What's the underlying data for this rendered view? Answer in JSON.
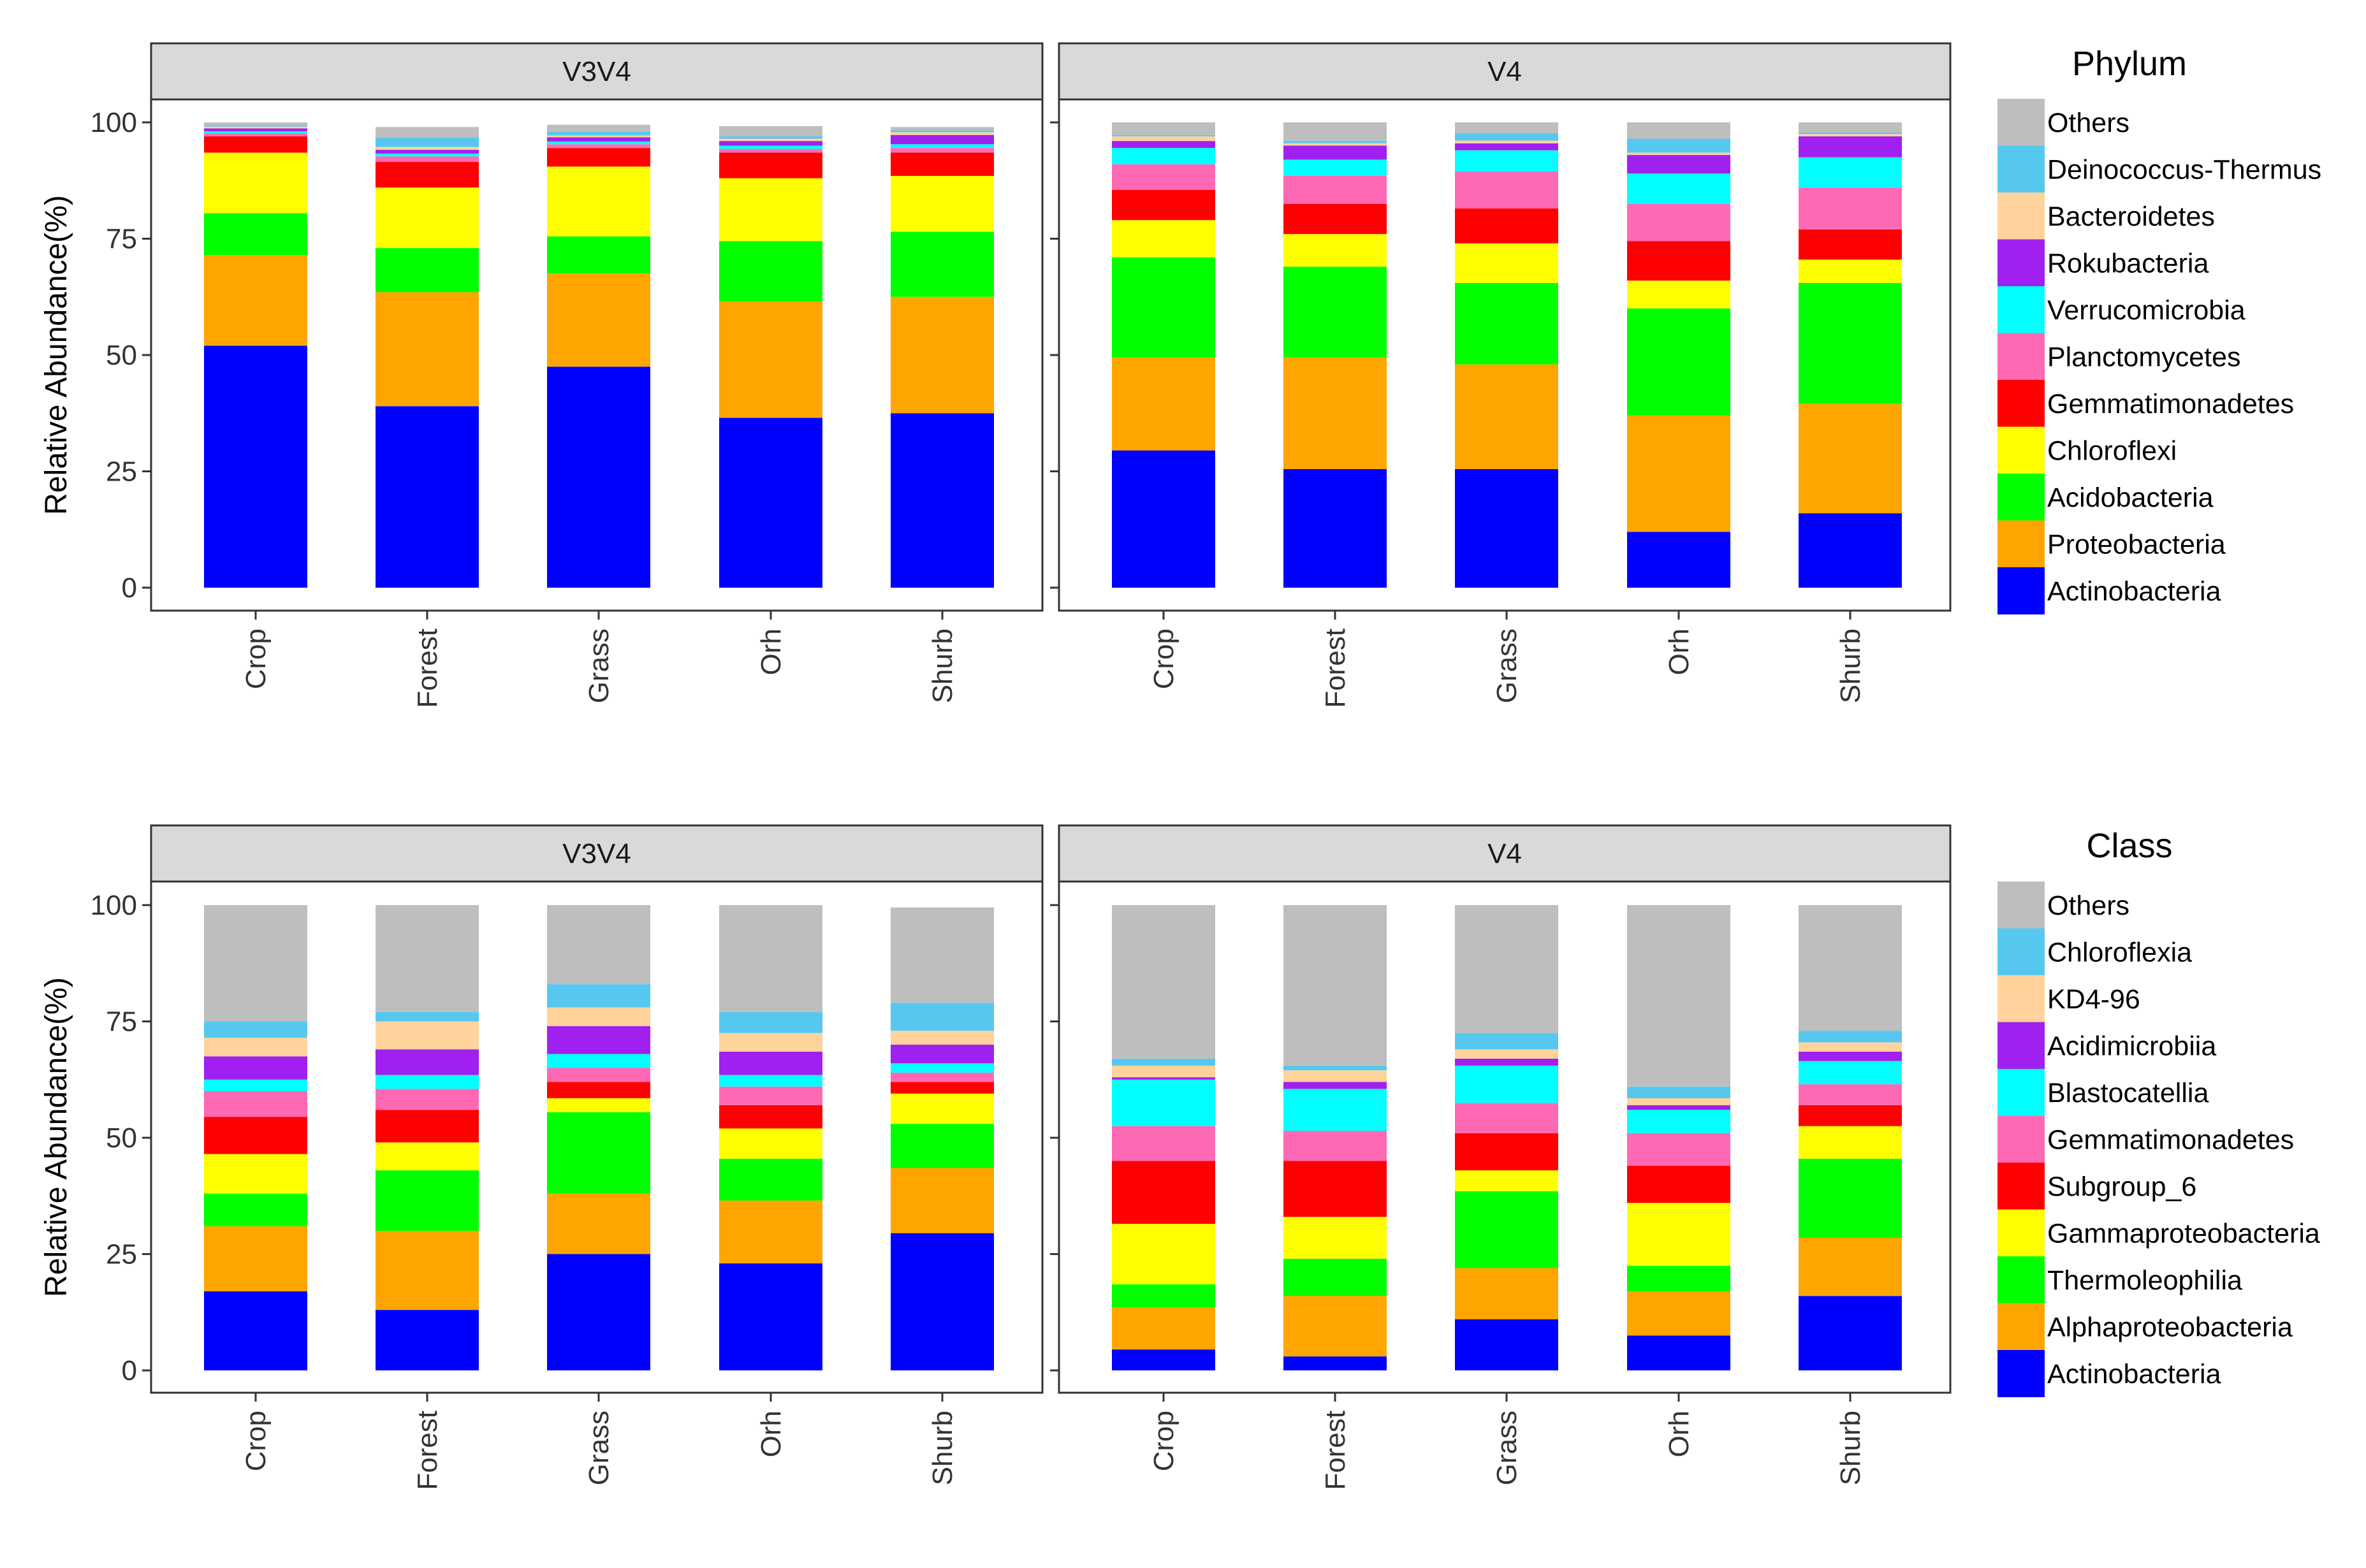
{
  "chart_data": [
    {
      "type": "bar",
      "stacked": true,
      "title": "Phylum",
      "ylabel": "Relative Abundance(%)",
      "ylim": [
        0,
        100
      ],
      "yticks": [
        0,
        25,
        50,
        75,
        100
      ],
      "categories": [
        "Crop",
        "Forest",
        "Grass",
        "Orh",
        "Shurb"
      ],
      "legend": {
        "title": "Phylum",
        "entries": [
          "Others",
          "Deinococcus-Thermus",
          "Bacteroidetes",
          "Rokubacteria",
          "Verrucomicrobia",
          "Planctomycetes",
          "Gemmatimonadetes",
          "Chloroflexi",
          "Acidobacteria",
          "Proteobacteria",
          "Actinobacteria"
        ]
      },
      "series_order": [
        "Actinobacteria",
        "Proteobacteria",
        "Acidobacteria",
        "Chloroflexi",
        "Gemmatimonadetes",
        "Planctomycetes",
        "Verrucomicrobia",
        "Rokubacteria",
        "Bacteroidetes",
        "Deinococcus-Thermus",
        "Others"
      ],
      "colors": {
        "Actinobacteria": "#0000ff",
        "Proteobacteria": "#ffa500",
        "Acidobacteria": "#00ff00",
        "Chloroflexi": "#ffff00",
        "Gemmatimonadetes": "#ff0000",
        "Planctomycetes": "#ff69b4",
        "Verrucomicrobia": "#00ffff",
        "Rokubacteria": "#a020f0",
        "Bacteroidetes": "#ffd39b",
        "Deinococcus-Thermus": "#56c8f0",
        "Others": "#bebebe"
      },
      "panels": [
        {
          "strip": "V3V4",
          "series": [
            {
              "name": "Actinobacteria",
              "values": [
                52,
                39,
                47.5,
                36.5,
                37.5
              ]
            },
            {
              "name": "Proteobacteria",
              "values": [
                19.5,
                24.5,
                20,
                25,
                25
              ]
            },
            {
              "name": "Acidobacteria",
              "values": [
                9,
                9.5,
                8,
                13,
                14
              ]
            },
            {
              "name": "Chloroflexi",
              "values": [
                13,
                13,
                15,
                13.5,
                12
              ]
            },
            {
              "name": "Gemmatimonadetes",
              "values": [
                3.5,
                5.5,
                4,
                5.5,
                5
              ]
            },
            {
              "name": "Planctomycetes",
              "values": [
                0.6,
                1.2,
                0.8,
                0.8,
                1
              ]
            },
            {
              "name": "Verrucomicrobia",
              "values": [
                0.5,
                0.6,
                0.6,
                0.7,
                0.8
              ]
            },
            {
              "name": "Rokubacteria",
              "values": [
                0.6,
                0.8,
                0.9,
                1,
                2
              ]
            },
            {
              "name": "Bacteroidetes",
              "values": [
                0.4,
                0.6,
                0.4,
                0.5,
                0.6
              ]
            },
            {
              "name": "Deinococcus-Thermus",
              "values": [
                0.3,
                2,
                0.8,
                0.5,
                0.4
              ]
            },
            {
              "name": "Others",
              "values": [
                0.6,
                2.3,
                1.5,
                2.2,
                0.7
              ]
            }
          ]
        },
        {
          "strip": "V4",
          "series": [
            {
              "name": "Actinobacteria",
              "values": [
                29.5,
                25.5,
                25.5,
                12,
                16
              ]
            },
            {
              "name": "Proteobacteria",
              "values": [
                20,
                24,
                22.5,
                25,
                23.5
              ]
            },
            {
              "name": "Acidobacteria",
              "values": [
                21.5,
                19.5,
                17.5,
                23,
                26
              ]
            },
            {
              "name": "Chloroflexi",
              "values": [
                8,
                7,
                8.5,
                6,
                5
              ]
            },
            {
              "name": "Gemmatimonadetes",
              "values": [
                6.5,
                6.5,
                7.5,
                8.5,
                6.5
              ]
            },
            {
              "name": "Planctomycetes",
              "values": [
                5.5,
                6,
                8,
                8,
                9
              ]
            },
            {
              "name": "Verrucomicrobia",
              "values": [
                3.5,
                3.5,
                4.5,
                6.5,
                6.5
              ]
            },
            {
              "name": "Rokubacteria",
              "values": [
                1.5,
                3,
                1.5,
                4,
                4.5
              ]
            },
            {
              "name": "Bacteroidetes",
              "values": [
                1,
                0.5,
                0.6,
                0.5,
                0.5
              ]
            },
            {
              "name": "Deinococcus-Thermus",
              "values": [
                0.3,
                0.5,
                1.6,
                3,
                0.3
              ]
            },
            {
              "name": "Others",
              "values": [
                2.7,
                4,
                2.3,
                3.5,
                2.2
              ]
            }
          ]
        }
      ]
    },
    {
      "type": "bar",
      "stacked": true,
      "title": "Class",
      "ylabel": "Relative Abundance(%)",
      "ylim": [
        0,
        100
      ],
      "yticks": [
        0,
        25,
        50,
        75,
        100
      ],
      "categories": [
        "Crop",
        "Forest",
        "Grass",
        "Orh",
        "Shurb"
      ],
      "legend": {
        "title": "Class",
        "entries": [
          "Others",
          "Chloroflexia",
          "KD4-96",
          "Acidimicrobiia",
          "Blastocatellia",
          "Gemmatimonadetes",
          "Subgroup_6",
          "Gammaproteobacteria",
          "Thermoleophilia",
          "Alphaproteobacteria",
          "Actinobacteria"
        ]
      },
      "series_order": [
        "Actinobacteria",
        "Alphaproteobacteria",
        "Thermoleophilia",
        "Gammaproteobacteria",
        "Subgroup_6",
        "Gemmatimonadetes",
        "Blastocatellia",
        "Acidimicrobiia",
        "KD4-96",
        "Chloroflexia",
        "Others"
      ],
      "colors": {
        "Actinobacteria": "#0000ff",
        "Alphaproteobacteria": "#ffa500",
        "Thermoleophilia": "#00ff00",
        "Gammaproteobacteria": "#ffff00",
        "Subgroup_6": "#ff0000",
        "Gemmatimonadetes": "#ff69b4",
        "Blastocatellia": "#00ffff",
        "Acidimicrobiia": "#a020f0",
        "KD4-96": "#ffd39b",
        "Chloroflexia": "#56c8f0",
        "Others": "#bebebe"
      },
      "panels": [
        {
          "strip": "V3V4",
          "series": [
            {
              "name": "Actinobacteria",
              "values": [
                17,
                13,
                25,
                23,
                29.5
              ]
            },
            {
              "name": "Alphaproteobacteria",
              "values": [
                14,
                17,
                13,
                13.5,
                14
              ]
            },
            {
              "name": "Thermoleophilia",
              "values": [
                7,
                13,
                17.5,
                9,
                9.5
              ]
            },
            {
              "name": "Gammaproteobacteria",
              "values": [
                8.5,
                6,
                3,
                6.5,
                6.5
              ]
            },
            {
              "name": "Subgroup_6",
              "values": [
                8,
                7,
                3.5,
                5,
                2.5
              ]
            },
            {
              "name": "Gemmatimonadetes",
              "values": [
                5.5,
                4.5,
                3,
                4,
                2
              ]
            },
            {
              "name": "Blastocatellia",
              "values": [
                2.5,
                3,
                3,
                2.5,
                2
              ]
            },
            {
              "name": "Acidimicrobiia",
              "values": [
                5,
                5.5,
                6,
                5,
                4
              ]
            },
            {
              "name": "KD4-96",
              "values": [
                4,
                6,
                4,
                4,
                3
              ]
            },
            {
              "name": "Chloroflexia",
              "values": [
                3.5,
                2,
                5,
                4.5,
                6
              ]
            },
            {
              "name": "Others",
              "values": [
                25,
                23,
                17,
                23,
                20.5
              ]
            }
          ]
        },
        {
          "strip": "V4",
          "series": [
            {
              "name": "Actinobacteria",
              "values": [
                4.5,
                3,
                11,
                7.5,
                16
              ]
            },
            {
              "name": "Alphaproteobacteria",
              "values": [
                9,
                13,
                11,
                9.5,
                12.5
              ]
            },
            {
              "name": "Thermoleophilia",
              "values": [
                5,
                8,
                16.5,
                5.5,
                17
              ]
            },
            {
              "name": "Gammaproteobacteria",
              "values": [
                13,
                9,
                4.5,
                13.5,
                7
              ]
            },
            {
              "name": "Subgroup_6",
              "values": [
                13.5,
                12,
                8,
                8,
                4.5
              ]
            },
            {
              "name": "Gemmatimonadetes",
              "values": [
                7.5,
                6.5,
                6.5,
                7,
                4.5
              ]
            },
            {
              "name": "Blastocatellia",
              "values": [
                10,
                9,
                8,
                5,
                5
              ]
            },
            {
              "name": "Acidimicrobiia",
              "values": [
                0.5,
                1.5,
                1.5,
                1,
                2
              ]
            },
            {
              "name": "KD4-96",
              "values": [
                2.5,
                2.5,
                2,
                1.5,
                2
              ]
            },
            {
              "name": "Chloroflexia",
              "values": [
                1.5,
                1,
                3.5,
                2.5,
                2.5
              ]
            },
            {
              "name": "Others",
              "values": [
                33,
                34.5,
                27.5,
                39,
                27
              ]
            }
          ]
        }
      ]
    }
  ]
}
